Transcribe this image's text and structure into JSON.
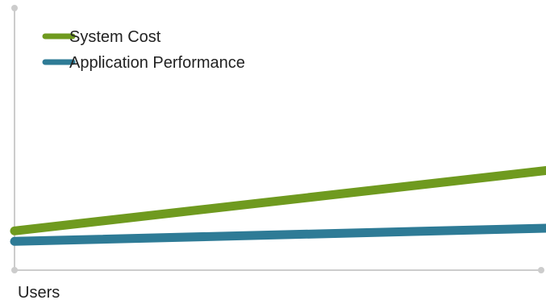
{
  "chart_data": {
    "type": "line",
    "title": "",
    "xlabel": "Users",
    "ylabel": "",
    "xlim": [
      0,
      1
    ],
    "ylim": [
      0,
      1
    ],
    "grid": false,
    "legend_position": "top-left",
    "series": [
      {
        "name": "System Cost",
        "color": "#6f9a1f",
        "x": [
          0,
          1
        ],
        "y": [
          0.15,
          0.38
        ]
      },
      {
        "name": "Application Performance",
        "color": "#2e7b96",
        "x": [
          0,
          1
        ],
        "y": [
          0.11,
          0.16
        ]
      }
    ]
  },
  "colors": {
    "axis": "#cccccc"
  }
}
